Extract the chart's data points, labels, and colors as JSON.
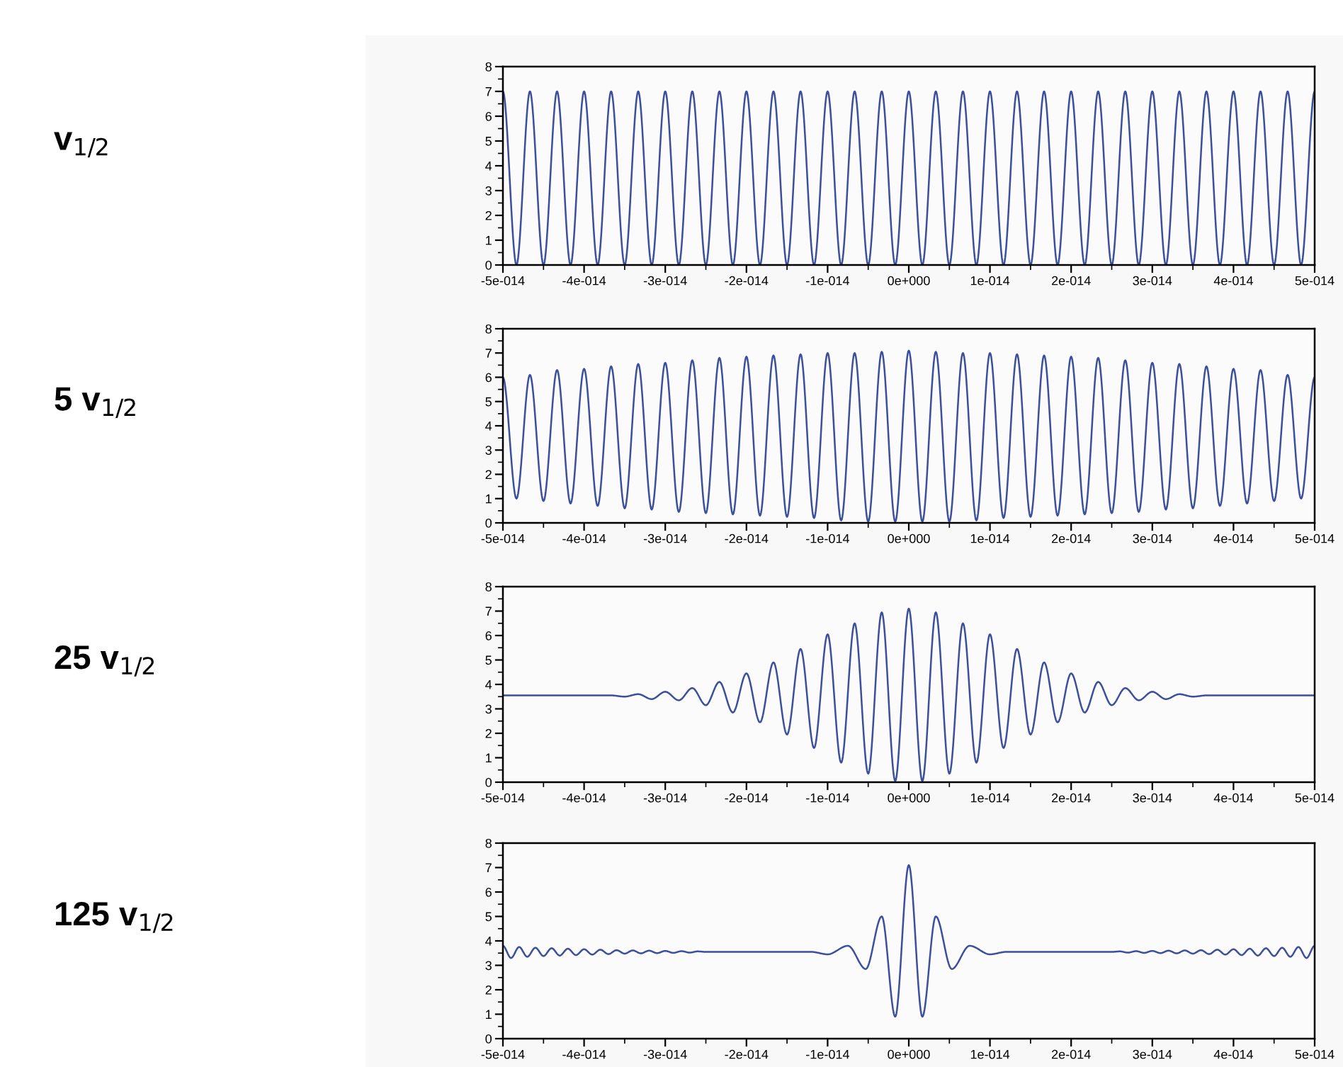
{
  "chart_data": [
    {
      "type": "line",
      "ylabel": "v$_{1/2}$",
      "color": "#3b4f9c",
      "x": [
        -5e-14,
        -4.833e-14,
        -4.667e-14,
        -4.5e-14,
        -4.333e-14,
        -4.167e-14,
        -4e-14,
        -3.833e-14,
        -3.667e-14,
        -3.5e-14,
        -3.333e-14,
        -3.167e-14,
        -3e-14,
        -2.833e-14,
        -2.667e-14,
        -2.5e-14,
        -2.333e-14,
        -2.167e-14,
        -2e-14,
        -1.833e-14,
        -1.667e-14,
        -1.5e-14,
        -1.333e-14,
        -1.167e-14,
        -1e-14,
        -8.33e-15,
        -6.67e-15,
        -5e-15,
        -3.33e-15,
        -1.67e-15,
        0,
        1.67e-15,
        3.33e-15,
        5e-15,
        6.67e-15,
        8.33e-15,
        1e-14,
        1.167e-14,
        1.333e-14,
        1.5e-14,
        1.667e-14,
        1.833e-14,
        2e-14,
        2.167e-14,
        2.333e-14,
        2.5e-14,
        2.667e-14,
        2.833e-14,
        3e-14,
        3.167e-14,
        3.333e-14,
        3.5e-14,
        3.667e-14,
        3.833e-14,
        4e-14,
        4.167e-14,
        4.333e-14,
        4.5e-14,
        4.667e-14,
        4.833e-14,
        5e-14
      ],
      "values": [
        7,
        0,
        7,
        0,
        7,
        0,
        7,
        0,
        7,
        0,
        7,
        0,
        7,
        0,
        7,
        0,
        7,
        0,
        7,
        0,
        7,
        0,
        7,
        0,
        7,
        0,
        7,
        0,
        7,
        0,
        7,
        0,
        7,
        0,
        7,
        0,
        7,
        0,
        7,
        0,
        7,
        0,
        7,
        0,
        7,
        0,
        7,
        0,
        7,
        0,
        7,
        0,
        7,
        0,
        7,
        0,
        7,
        0,
        7,
        0,
        7
      ],
      "xlim": [
        -5e-14,
        5e-14
      ],
      "ylim": [
        0,
        8
      ],
      "yticks": [
        0,
        1,
        2,
        3,
        4,
        5,
        6,
        7,
        8
      ],
      "xticks": [
        {
          "value": -5e-14,
          "label": "-5e-014"
        },
        {
          "value": -4e-14,
          "label": "-4e-014"
        },
        {
          "value": -3e-14,
          "label": "-3e-014"
        },
        {
          "value": -2e-14,
          "label": "-2e-014"
        },
        {
          "value": -1e-14,
          "label": "-1e-014"
        },
        {
          "value": 0,
          "label": "0e+000"
        },
        {
          "value": 1e-14,
          "label": "1e-014"
        },
        {
          "value": 2e-14,
          "label": "2e-014"
        },
        {
          "value": 3e-14,
          "label": "3e-014"
        },
        {
          "value": 4e-14,
          "label": "4e-014"
        },
        {
          "value": 5e-14,
          "label": "5e-014"
        }
      ]
    },
    {
      "type": "line",
      "ylabel": "5 v$_{1/2}$",
      "color": "#3b4f9c",
      "x": [
        -5e-14,
        -4.833e-14,
        -4.667e-14,
        -4.5e-14,
        -4.333e-14,
        -4.167e-14,
        -4e-14,
        -3.833e-14,
        -3.667e-14,
        -3.5e-14,
        -3.333e-14,
        -3.167e-14,
        -3e-14,
        -2.833e-14,
        -2.667e-14,
        -2.5e-14,
        -2.333e-14,
        -2.167e-14,
        -2e-14,
        -1.833e-14,
        -1.667e-14,
        -1.5e-14,
        -1.333e-14,
        -1.167e-14,
        -1e-14,
        -8.33e-15,
        -6.67e-15,
        -5e-15,
        -3.33e-15,
        -1.67e-15,
        0,
        1.67e-15,
        3.33e-15,
        5e-15,
        6.67e-15,
        8.33e-15,
        1e-14,
        1.167e-14,
        1.333e-14,
        1.5e-14,
        1.667e-14,
        1.833e-14,
        2e-14,
        2.167e-14,
        2.333e-14,
        2.5e-14,
        2.667e-14,
        2.833e-14,
        3e-14,
        3.167e-14,
        3.333e-14,
        3.5e-14,
        3.667e-14,
        3.833e-14,
        4e-14,
        4.167e-14,
        4.333e-14,
        4.5e-14,
        4.667e-14,
        4.833e-14,
        5e-14
      ],
      "values": [
        6.0,
        1.0,
        6.1,
        0.9,
        6.3,
        0.8,
        6.35,
        0.7,
        6.45,
        0.6,
        6.55,
        0.55,
        6.6,
        0.45,
        6.7,
        0.4,
        6.8,
        0.35,
        6.85,
        0.3,
        6.9,
        0.25,
        6.95,
        0.2,
        7.0,
        0.1,
        7.0,
        0.05,
        7.05,
        0.05,
        7.1,
        0.05,
        7.05,
        0.05,
        7.0,
        0.1,
        7.0,
        0.2,
        6.95,
        0.25,
        6.9,
        0.3,
        6.85,
        0.35,
        6.8,
        0.4,
        6.7,
        0.45,
        6.6,
        0.55,
        6.55,
        0.6,
        6.45,
        0.7,
        6.35,
        0.8,
        6.3,
        0.9,
        6.1,
        1.0,
        6.0
      ],
      "xlim": [
        -5e-14,
        5e-14
      ],
      "ylim": [
        0,
        8
      ],
      "yticks": [
        0,
        1,
        2,
        3,
        4,
        5,
        6,
        7,
        8
      ],
      "xticks": [
        {
          "value": -5e-14,
          "label": "-5e-014"
        },
        {
          "value": -4e-14,
          "label": "-4e-014"
        },
        {
          "value": -3e-14,
          "label": "-3e-014"
        },
        {
          "value": -2e-14,
          "label": "-2e-014"
        },
        {
          "value": -1e-14,
          "label": "-1e-014"
        },
        {
          "value": 0,
          "label": "0e+000"
        },
        {
          "value": 1e-14,
          "label": "1e-014"
        },
        {
          "value": 2e-14,
          "label": "2e-014"
        },
        {
          "value": 3e-14,
          "label": "3e-014"
        },
        {
          "value": 4e-14,
          "label": "4e-014"
        },
        {
          "value": 5e-14,
          "label": "5e-014"
        }
      ]
    },
    {
      "type": "line",
      "ylabel": "25 v$_{1/2}$",
      "color": "#3b4f9c",
      "x": [
        -5e-14,
        -3.667e-14,
        -3.5e-14,
        -3.333e-14,
        -3.167e-14,
        -3e-14,
        -2.833e-14,
        -2.667e-14,
        -2.5e-14,
        -2.333e-14,
        -2.167e-14,
        -2e-14,
        -1.833e-14,
        -1.667e-14,
        -1.5e-14,
        -1.333e-14,
        -1.167e-14,
        -1e-14,
        -8.33e-15,
        -6.67e-15,
        -5e-15,
        -3.33e-15,
        -1.67e-15,
        0,
        1.67e-15,
        3.33e-15,
        5e-15,
        6.67e-15,
        8.33e-15,
        1e-14,
        1.167e-14,
        1.333e-14,
        1.5e-14,
        1.667e-14,
        1.833e-14,
        2e-14,
        2.167e-14,
        2.333e-14,
        2.5e-14,
        2.667e-14,
        2.833e-14,
        3e-14,
        3.167e-14,
        3.333e-14,
        3.5e-14,
        3.667e-14,
        5e-14
      ],
      "values": [
        3.55,
        3.55,
        3.5,
        3.6,
        3.4,
        3.7,
        3.35,
        3.85,
        3.15,
        4.1,
        2.85,
        4.45,
        2.45,
        4.9,
        1.95,
        5.45,
        1.4,
        6.05,
        0.8,
        6.5,
        0.35,
        6.95,
        0.05,
        7.1,
        0.05,
        6.95,
        0.35,
        6.5,
        0.8,
        6.05,
        1.4,
        5.45,
        1.95,
        4.9,
        2.45,
        4.45,
        2.85,
        4.1,
        3.15,
        3.85,
        3.35,
        3.7,
        3.4,
        3.6,
        3.5,
        3.55,
        3.55
      ],
      "xlim": [
        -5e-14,
        5e-14
      ],
      "ylim": [
        0,
        8
      ],
      "yticks": [
        0,
        1,
        2,
        3,
        4,
        5,
        6,
        7,
        8
      ],
      "xticks": [
        {
          "value": -5e-14,
          "label": "-5e-014"
        },
        {
          "value": -4e-14,
          "label": "-4e-014"
        },
        {
          "value": -3e-14,
          "label": "-3e-014"
        },
        {
          "value": -2e-14,
          "label": "-2e-014"
        },
        {
          "value": -1e-14,
          "label": "-1e-014"
        },
        {
          "value": 0,
          "label": "0e+000"
        },
        {
          "value": 1e-14,
          "label": "1e-014"
        },
        {
          "value": 2e-14,
          "label": "2e-014"
        },
        {
          "value": 3e-14,
          "label": "3e-014"
        },
        {
          "value": 4e-14,
          "label": "4e-014"
        },
        {
          "value": 5e-14,
          "label": "5e-014"
        }
      ]
    },
    {
      "type": "line",
      "ylabel": "125 v$_{1/2}$",
      "color": "#3b4f9c",
      "x": [
        -5e-14,
        -4.9e-14,
        -4.8e-14,
        -4.7e-14,
        -4.6e-14,
        -4.5e-14,
        -4.4e-14,
        -4.3e-14,
        -4.2e-14,
        -4.1e-14,
        -4e-14,
        -3.9e-14,
        -3.8e-14,
        -3.7e-14,
        -3.6e-14,
        -3.5e-14,
        -3.4e-14,
        -3.3e-14,
        -3.2e-14,
        -3.1e-14,
        -3e-14,
        -2.9e-14,
        -2.8e-14,
        -2.7e-14,
        -2.6e-14,
        -2.5e-14,
        -1.2e-14,
        -1e-14,
        -7.5e-15,
        -5.3e-15,
        -3.33e-15,
        -1.67e-15,
        0,
        1.67e-15,
        3.33e-15,
        5.3e-15,
        7.5e-15,
        1e-14,
        1.2e-14,
        2.5e-14,
        2.6e-14,
        2.7e-14,
        2.8e-14,
        2.9e-14,
        3e-14,
        3.1e-14,
        3.2e-14,
        3.3e-14,
        3.4e-14,
        3.5e-14,
        3.6e-14,
        3.7e-14,
        3.8e-14,
        3.9e-14,
        4e-14,
        4.1e-14,
        4.2e-14,
        4.3e-14,
        4.4e-14,
        4.5e-14,
        4.6e-14,
        4.7e-14,
        4.8e-14,
        4.9e-14,
        5e-14
      ],
      "values": [
        3.8,
        3.3,
        3.75,
        3.35,
        3.72,
        3.38,
        3.7,
        3.4,
        3.68,
        3.42,
        3.66,
        3.44,
        3.64,
        3.46,
        3.62,
        3.48,
        3.61,
        3.49,
        3.6,
        3.5,
        3.59,
        3.51,
        3.58,
        3.52,
        3.57,
        3.55,
        3.55,
        3.45,
        3.8,
        2.85,
        5.0,
        0.9,
        7.1,
        0.9,
        5.0,
        2.85,
        3.8,
        3.45,
        3.55,
        3.55,
        3.57,
        3.52,
        3.58,
        3.51,
        3.59,
        3.5,
        3.6,
        3.49,
        3.61,
        3.48,
        3.62,
        3.46,
        3.64,
        3.44,
        3.66,
        3.42,
        3.68,
        3.4,
        3.7,
        3.38,
        3.72,
        3.35,
        3.75,
        3.3,
        3.8
      ],
      "xlim": [
        -5e-14,
        5e-14
      ],
      "ylim": [
        0,
        8
      ],
      "yticks": [
        0,
        1,
        2,
        3,
        4,
        5,
        6,
        7,
        8
      ],
      "xticks": [
        {
          "value": -5e-14,
          "label": "-5e-014"
        },
        {
          "value": -4e-14,
          "label": "-4e-014"
        },
        {
          "value": -3e-14,
          "label": "-3e-014"
        },
        {
          "value": -2e-14,
          "label": "-2e-014"
        },
        {
          "value": -1e-14,
          "label": "-1e-014"
        },
        {
          "value": 0,
          "label": "0e+000"
        },
        {
          "value": 1e-14,
          "label": "1e-014"
        },
        {
          "value": 2e-14,
          "label": "2e-014"
        },
        {
          "value": 3e-14,
          "label": "3e-014"
        },
        {
          "value": 4e-14,
          "label": "4e-014"
        },
        {
          "value": 5e-14,
          "label": "5e-014"
        }
      ]
    }
  ]
}
